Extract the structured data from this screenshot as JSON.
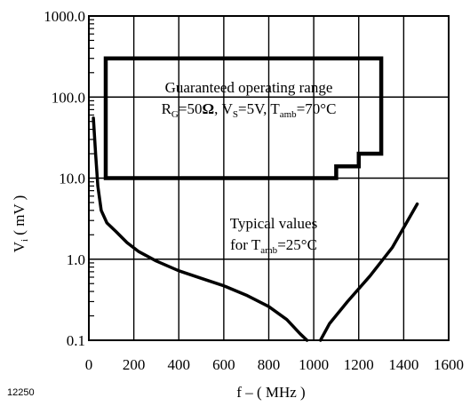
{
  "chart_data": {
    "type": "line",
    "x_axis": {
      "range": [
        0,
        1600
      ],
      "ticks": [
        0,
        200,
        400,
        600,
        800,
        1000,
        1200,
        1400,
        1600
      ],
      "tick_labels": [
        "0",
        "200",
        "400",
        "600",
        "800",
        "1000",
        "1200",
        "1400",
        "1600"
      ],
      "label": "f – ( MHz )"
    },
    "y_axis": {
      "scale": "log",
      "range": [
        0.1,
        1000
      ],
      "ticks": [
        0.1,
        1,
        10,
        100,
        1000
      ],
      "tick_labels": [
        "0.1",
        "1.0",
        "10.0",
        "100.0",
        "1000.0"
      ],
      "label_main": "V",
      "label_sub": "i",
      "label_rest": " ( mV )"
    },
    "grid": true,
    "region": {
      "label_line1": "Guaranteed operating range",
      "label_line2_parts": {
        "r": "R",
        "r_sub": "G",
        "r_val": "=50",
        "omega": "Ω",
        "vs": ", V",
        "vs_sub": "S",
        "vs_val": "=5V, T",
        "t_sub": "amb",
        "t_val": "=70°C"
      },
      "outline": [
        [
          75,
          300
        ],
        [
          1300,
          300
        ],
        [
          1300,
          20
        ],
        [
          1200,
          20
        ],
        [
          1200,
          14
        ],
        [
          1100,
          14
        ],
        [
          1100,
          10
        ],
        [
          75,
          10
        ]
      ]
    },
    "typical": {
      "label_line1": "Typical values",
      "label_line2_prefix": "for T",
      "label_line2_sub": "amb",
      "label_line2_suffix": "=25°C",
      "branches": [
        [
          [
            20,
            55
          ],
          [
            30,
            20
          ],
          [
            40,
            8
          ],
          [
            55,
            4
          ],
          [
            80,
            2.8
          ],
          [
            120,
            2.2
          ],
          [
            170,
            1.6
          ],
          [
            220,
            1.25
          ],
          [
            300,
            0.95
          ],
          [
            400,
            0.72
          ],
          [
            500,
            0.58
          ],
          [
            600,
            0.47
          ],
          [
            700,
            0.36
          ],
          [
            800,
            0.26
          ],
          [
            880,
            0.18
          ],
          [
            940,
            0.12
          ],
          [
            970,
            0.1
          ]
        ],
        [
          [
            1030,
            0.1
          ],
          [
            1070,
            0.16
          ],
          [
            1150,
            0.3
          ],
          [
            1250,
            0.62
          ],
          [
            1350,
            1.4
          ],
          [
            1460,
            4.8
          ]
        ]
      ]
    }
  },
  "figure_code": "12250"
}
